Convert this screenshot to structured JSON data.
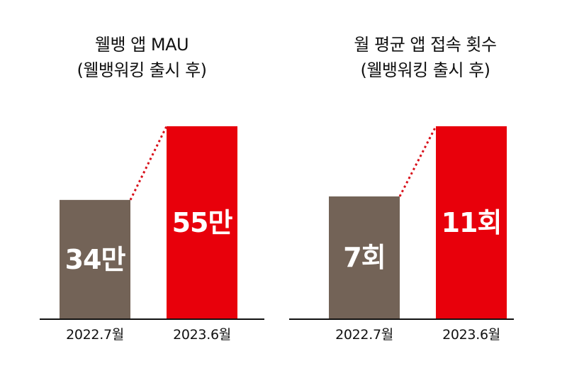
{
  "colors": {
    "bar_2022": "#736357",
    "bar_2023": "#e8000b",
    "connector": "#d8101a",
    "baseline": "#111111"
  },
  "chart_data": [
    {
      "type": "bar",
      "title_line1": "웰뱅 앱 MAU",
      "title_line2": "(웰뱅워킹 출시 후)",
      "categories": [
        "2022.7월",
        "2023.6월"
      ],
      "values": [
        34,
        55
      ],
      "value_labels": [
        "34만",
        "55만"
      ],
      "ylim": [
        0,
        55
      ],
      "grid": false
    },
    {
      "type": "bar",
      "title_line1": "월 평균 앱 접속 횟수",
      "title_line2": "(웰뱅워킹 출시 후)",
      "categories": [
        "2022.7월",
        "2023.6월"
      ],
      "values": [
        7,
        11
      ],
      "value_labels": [
        "7회",
        "11회"
      ],
      "ylim": [
        0,
        11
      ],
      "grid": false
    }
  ]
}
